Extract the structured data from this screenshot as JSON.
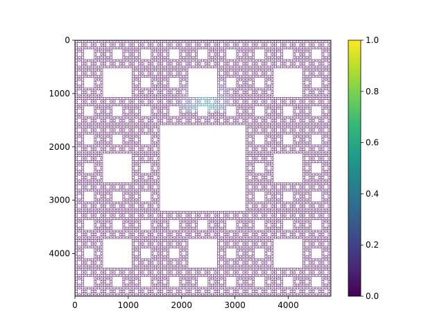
{
  "chart_data": {
    "type": "heatmap",
    "title": "",
    "xlabel": "",
    "ylabel": "",
    "extent": [
      0,
      4800
    ],
    "xlim": [
      0,
      4800
    ],
    "ylim": [
      4800,
      0
    ],
    "x_ticks": [
      {
        "value": 0,
        "label": "0"
      },
      {
        "value": 1000,
        "label": "1000"
      },
      {
        "value": 2000,
        "label": "2000"
      },
      {
        "value": 3000,
        "label": "3000"
      },
      {
        "value": 4000,
        "label": "4000"
      }
    ],
    "y_ticks": [
      {
        "value": 0,
        "label": "0"
      },
      {
        "value": 1000,
        "label": "1000"
      },
      {
        "value": 2000,
        "label": "2000"
      },
      {
        "value": 3000,
        "label": "3000"
      },
      {
        "value": 4000,
        "label": "4000"
      }
    ],
    "pattern": "Sierpinski carpet (non-zero cells shown in colormap, removed cells blank)",
    "highlight": {
      "x_range": [
        1900,
        3000
      ],
      "y_range": [
        600,
        1350
      ],
      "peak_value": 0.6
    },
    "colormap": "viridis",
    "colorbar": {
      "vmin": 0,
      "vmax": 1,
      "ticks": [
        {
          "value": 0.0,
          "label": "0.0"
        },
        {
          "value": 0.2,
          "label": "0.2"
        },
        {
          "value": 0.4,
          "label": "0.4"
        },
        {
          "value": 0.6,
          "label": "0.6"
        },
        {
          "value": 0.8,
          "label": "0.8"
        },
        {
          "value": 1.0,
          "label": "1.0"
        }
      ]
    },
    "grid": false,
    "legend": "none"
  },
  "colors": {
    "cell_base": "#440154",
    "background": "#ffffff",
    "axis": "#000000",
    "viridis_stops": [
      "#440154",
      "#482878",
      "#3e4989",
      "#31688e",
      "#26828e",
      "#1f9e89",
      "#35b779",
      "#6ece58",
      "#b5de2b",
      "#fde725"
    ]
  }
}
